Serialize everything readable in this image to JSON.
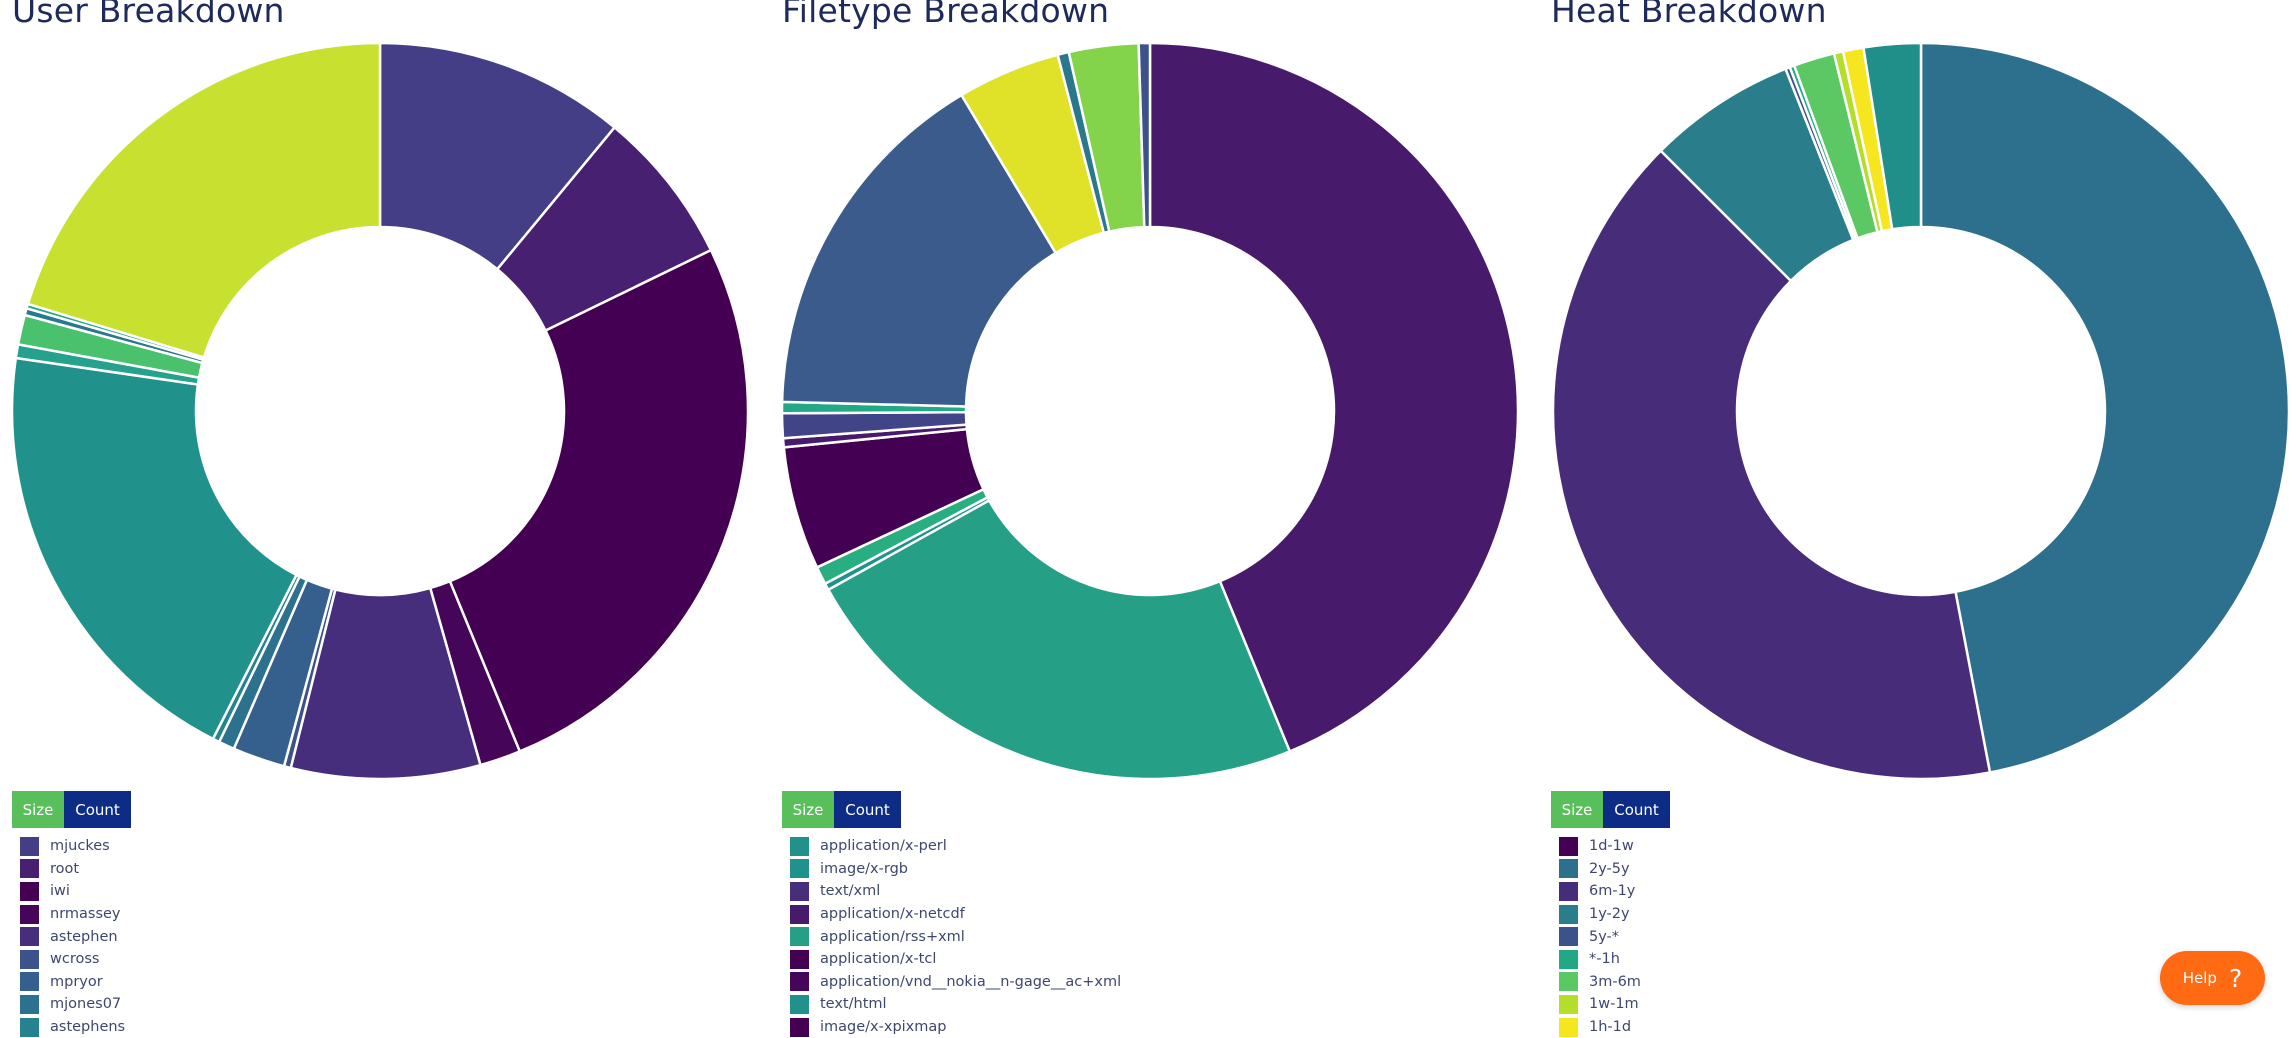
{
  "toggle": {
    "size_label": "Size",
    "count_label": "Count"
  },
  "help": {
    "label": "Help",
    "icon": "question-mark-icon",
    "color": "#ff6a13"
  },
  "chart_data": [
    {
      "type": "donut",
      "title": "User Breakdown",
      "slices": [
        {
          "value": 11.0,
          "color": "#433e85"
        },
        {
          "value": 6.8,
          "color": "#482071"
        },
        {
          "value": 26.0,
          "color": "#440154"
        },
        {
          "value": 1.8,
          "color": "#450559"
        },
        {
          "value": 8.3,
          "color": "#472e7c"
        },
        {
          "value": 0.3,
          "color": "#3b528b"
        },
        {
          "value": 2.3,
          "color": "#355f8d"
        },
        {
          "value": 0.7,
          "color": "#2c728e"
        },
        {
          "value": 0.3,
          "color": "#26828e"
        },
        {
          "value": 19.8,
          "color": "#21918c"
        },
        {
          "value": 0.6,
          "color": "#25a18e"
        },
        {
          "value": 1.3,
          "color": "#4ac16d"
        },
        {
          "value": 0.3,
          "color": "#2a788e"
        },
        {
          "value": 0.2,
          "color": "#22a884"
        },
        {
          "value": 20.3,
          "color": "#c8e02f"
        }
      ],
      "legend": [
        {
          "label": "mjuckes",
          "color": "#433e85"
        },
        {
          "label": "root",
          "color": "#482071"
        },
        {
          "label": "iwi",
          "color": "#440154"
        },
        {
          "label": "nrmassey",
          "color": "#450559"
        },
        {
          "label": "astephen",
          "color": "#472e7c"
        },
        {
          "label": "wcross",
          "color": "#3b528b"
        },
        {
          "label": "mpryor",
          "color": "#355f8d"
        },
        {
          "label": "mjones07",
          "color": "#2c728e"
        },
        {
          "label": "astephens",
          "color": "#26828e"
        }
      ]
    },
    {
      "type": "donut",
      "title": "Filetype Breakdown",
      "slices": [
        {
          "value": 44.5,
          "color": "#481a6c"
        },
        {
          "value": 23.5,
          "color": "#25a086"
        },
        {
          "value": 0.3,
          "color": "#21918c"
        },
        {
          "value": 0.8,
          "color": "#28ae80"
        },
        {
          "value": 5.5,
          "color": "#440154"
        },
        {
          "value": 0.4,
          "color": "#481a6c"
        },
        {
          "value": 1.1,
          "color": "#414487"
        },
        {
          "value": 0.5,
          "color": "#22a884"
        },
        {
          "value": 16.3,
          "color": "#3b5b8c"
        },
        {
          "value": 4.6,
          "color": "#e0e22a"
        },
        {
          "value": 0.5,
          "color": "#2a788e"
        },
        {
          "value": 3.1,
          "color": "#84d44b"
        },
        {
          "value": 0.5,
          "color": "#3b528b"
        }
      ],
      "legend": [
        {
          "label": "application/x-perl",
          "color": "#21918c"
        },
        {
          "label": "image/x-rgb",
          "color": "#21918c"
        },
        {
          "label": "text/xml",
          "color": "#472e7c"
        },
        {
          "label": "application/x-netcdf",
          "color": "#481a6c"
        },
        {
          "label": "application/rss+xml",
          "color": "#25a086"
        },
        {
          "label": "application/x-tcl",
          "color": "#440154"
        },
        {
          "label": "application/vnd__nokia__n-gage__ac+xml",
          "color": "#450559"
        },
        {
          "label": "text/html",
          "color": "#21918c"
        },
        {
          "label": "image/x-xpixmap",
          "color": "#440154"
        }
      ]
    },
    {
      "type": "donut",
      "title": "Heat Breakdown",
      "slices": [
        {
          "value": 47.0,
          "color": "#2d708e"
        },
        {
          "value": 40.5,
          "color": "#472c7a"
        },
        {
          "value": 6.5,
          "color": "#2a7e8c"
        },
        {
          "value": 0.2,
          "color": "#3b528b"
        },
        {
          "value": 0.2,
          "color": "#22a884"
        },
        {
          "value": 1.8,
          "color": "#5cc863"
        },
        {
          "value": 0.4,
          "color": "#b5de2b"
        },
        {
          "value": 0.9,
          "color": "#f5e61f"
        },
        {
          "value": 2.5,
          "color": "#208f8a"
        }
      ],
      "legend": [
        {
          "label": "1d-1w",
          "color": "#440154"
        },
        {
          "label": "2y-5y",
          "color": "#2d708e"
        },
        {
          "label": "6m-1y",
          "color": "#472c7a"
        },
        {
          "label": "1y-2y",
          "color": "#2a7e8c"
        },
        {
          "label": "5y-*",
          "color": "#3b528b"
        },
        {
          "label": "*-1h",
          "color": "#22a884"
        },
        {
          "label": "3m-6m",
          "color": "#5cc863"
        },
        {
          "label": "1w-1m",
          "color": "#b5de2b"
        },
        {
          "label": "1h-1d",
          "color": "#f5e61f"
        }
      ]
    }
  ]
}
